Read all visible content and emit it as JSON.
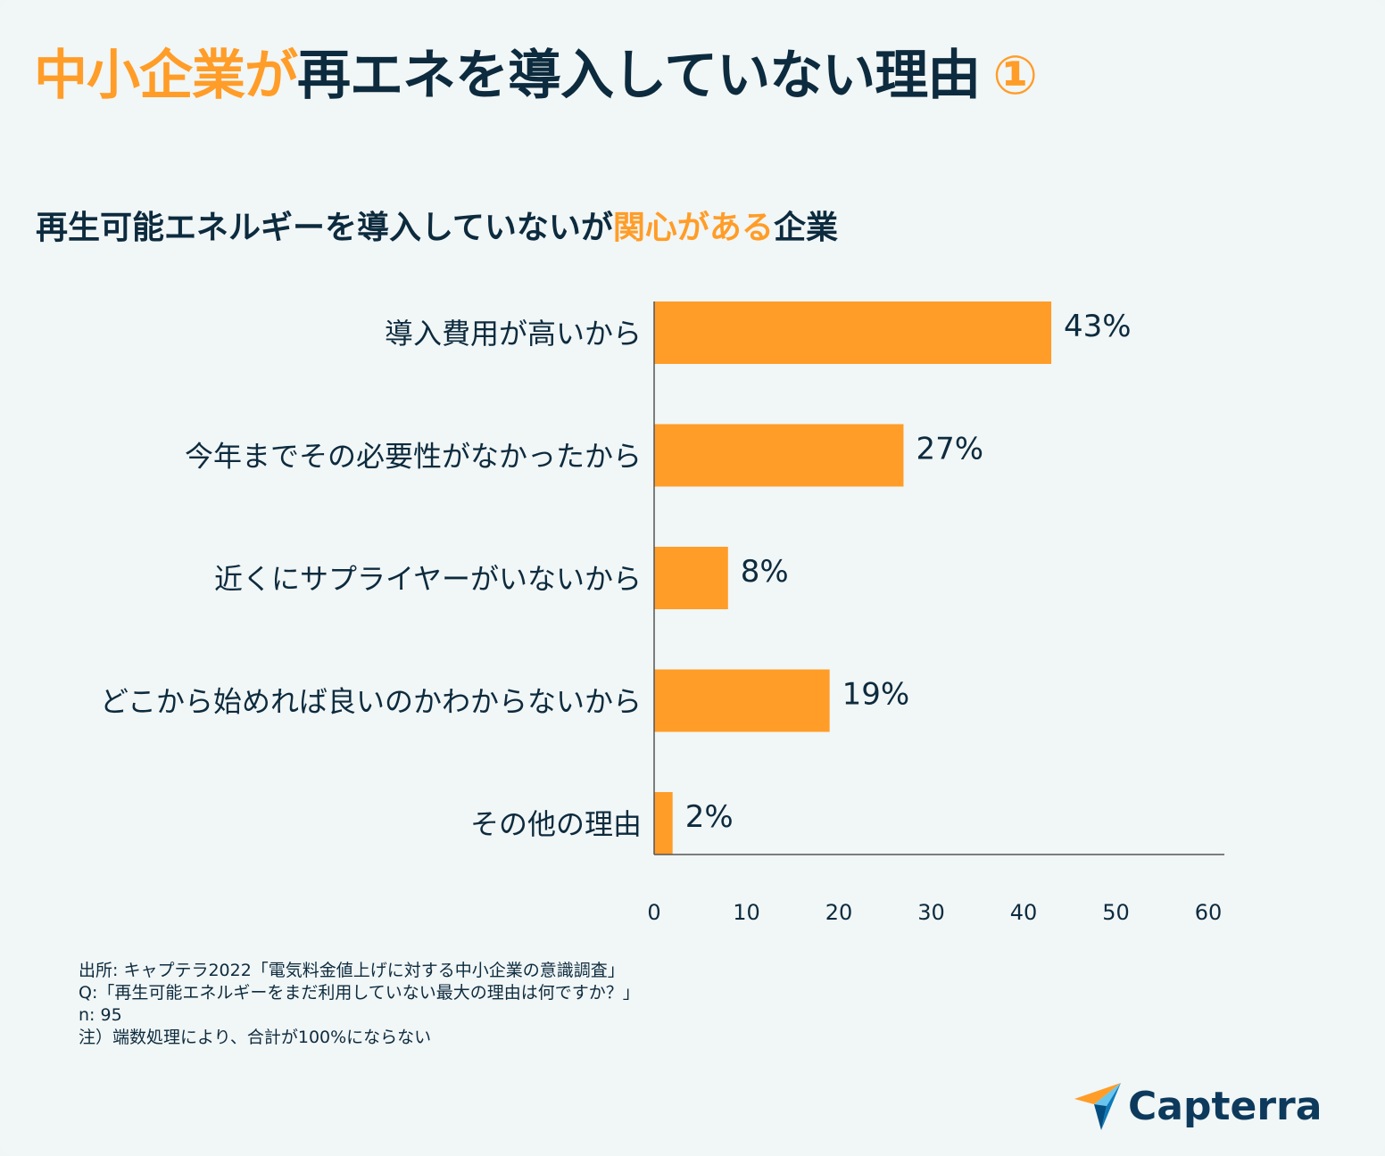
{
  "title": {
    "accent": "中小企業が",
    "rest": "再エネを導入していない理由",
    "number": "①"
  },
  "subtitle": {
    "part1": "再生可能エネルギーを導入していないが",
    "accent": "関心がある",
    "part2": "企業"
  },
  "chart_data": {
    "type": "bar",
    "orientation": "horizontal",
    "categories": [
      "導入費用が高いから",
      "今年までその必要性がなかったから",
      "近くにサプライヤーがいないから",
      "どこから始めれば良いのかわからないから",
      "その他の理由"
    ],
    "values": [
      43,
      27,
      8,
      19,
      2
    ],
    "value_labels": [
      "43%",
      "27%",
      "8%",
      "19%",
      "2%"
    ],
    "xlim": [
      0,
      60
    ],
    "xticks": [
      0,
      10,
      20,
      30,
      40,
      50,
      60
    ],
    "xtick_labels": [
      "0",
      "10",
      "20",
      "30",
      "40",
      "50",
      "60"
    ],
    "bar_color": "#ff9d28",
    "grid": false
  },
  "notes": [
    "出所: キャプテラ2022「電気料金値上げに対する中小企業の意識調査」",
    "Q:「再生可能エネルギーをまだ利用していない最大の理由は何ですか？」",
    "n: 95",
    "注）端数処理により、合計が100%にならない"
  ],
  "logo": {
    "text": "Capterra",
    "icon": "capterra-arrow-icon"
  },
  "colors": {
    "accent": "#ff9d28",
    "text": "#0d2b3e",
    "background": "#f1f6f6"
  }
}
